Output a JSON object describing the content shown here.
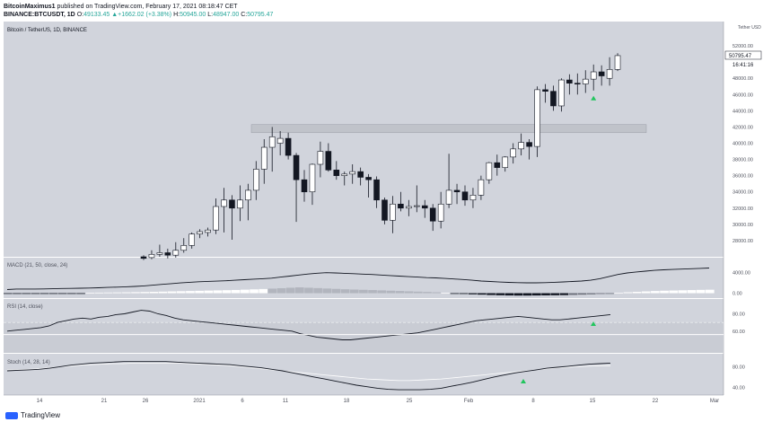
{
  "header": {
    "author": "BitcoinMaximus1",
    "published_text": "published on TradingView.com, February 17, 2021 08:18:47 CET",
    "symbol": "BINANCE:BTCUSDT, 1D",
    "open_label": "O:",
    "open_value": "49133.45",
    "change": "+1662.02 (+3.38%)",
    "high_label": "H:",
    "high_value": "50945.00",
    "low_label": "L:",
    "low_value": "48947.00",
    "close_label": "C:",
    "close_value": "50795.47"
  },
  "footer": {
    "logo_text": "TradingView"
  },
  "colors": {
    "background": "#d1d4dc",
    "up_fill": "#ffffff",
    "down_fill": "#131722",
    "line": "#131722",
    "signal": "#ffffff",
    "arrow": "#22c55e",
    "zone": "#bfc2c9"
  },
  "chart_data": [
    {
      "type": "candlestick",
      "title": "Bitcoin / TetherUS, 1D, BINANCE",
      "y_axis_label": "Tether USD",
      "ylim": [
        26000,
        55000
      ],
      "y_ticks": [
        "52000.00",
        "50000.00",
        "48000.00",
        "46000.00",
        "44000.00",
        "42000.00",
        "40000.00",
        "38000.00",
        "36000.00",
        "34000.00",
        "32000.00",
        "30000.00",
        "28000.00"
      ],
      "last_price_label": "50795.47",
      "countdown_label": "16:41:16",
      "candles": [
        {
          "o": 26000,
          "h": 26200,
          "l": 25600,
          "c": 25800
        },
        {
          "o": 25900,
          "h": 26800,
          "l": 25700,
          "c": 26300
        },
        {
          "o": 26300,
          "h": 27500,
          "l": 26000,
          "c": 26500
        },
        {
          "o": 26500,
          "h": 27000,
          "l": 25800,
          "c": 26200
        },
        {
          "o": 26200,
          "h": 27800,
          "l": 25900,
          "c": 26800
        },
        {
          "o": 26800,
          "h": 28300,
          "l": 26500,
          "c": 27400
        },
        {
          "o": 27400,
          "h": 29000,
          "l": 27000,
          "c": 28800
        },
        {
          "o": 28800,
          "h": 29400,
          "l": 28300,
          "c": 29100
        },
        {
          "o": 29000,
          "h": 29600,
          "l": 28500,
          "c": 29300
        },
        {
          "o": 29300,
          "h": 33200,
          "l": 28800,
          "c": 32200
        },
        {
          "o": 32200,
          "h": 34500,
          "l": 29000,
          "c": 33000
        },
        {
          "o": 33000,
          "h": 33600,
          "l": 28100,
          "c": 32000
        },
        {
          "o": 32000,
          "h": 34800,
          "l": 30400,
          "c": 33000
        },
        {
          "o": 33000,
          "h": 35000,
          "l": 30500,
          "c": 34200
        },
        {
          "o": 34200,
          "h": 37800,
          "l": 33000,
          "c": 36800
        },
        {
          "o": 36800,
          "h": 40500,
          "l": 35000,
          "c": 39500
        },
        {
          "o": 39500,
          "h": 42000,
          "l": 36500,
          "c": 40800
        },
        {
          "o": 40000,
          "h": 41500,
          "l": 38500,
          "c": 40600
        },
        {
          "o": 40600,
          "h": 41300,
          "l": 38000,
          "c": 38500
        },
        {
          "o": 38500,
          "h": 38800,
          "l": 30300,
          "c": 35500
        },
        {
          "o": 35500,
          "h": 36700,
          "l": 32800,
          "c": 34000
        },
        {
          "o": 34000,
          "h": 37500,
          "l": 32400,
          "c": 37400
        },
        {
          "o": 37400,
          "h": 40200,
          "l": 35800,
          "c": 39000
        },
        {
          "o": 39000,
          "h": 40000,
          "l": 36500,
          "c": 36700
        },
        {
          "o": 36700,
          "h": 37800,
          "l": 35500,
          "c": 36000
        },
        {
          "o": 36000,
          "h": 36500,
          "l": 34800,
          "c": 36200
        },
        {
          "o": 36200,
          "h": 37400,
          "l": 35000,
          "c": 36500
        },
        {
          "o": 36500,
          "h": 37000,
          "l": 34800,
          "c": 35800
        },
        {
          "o": 35800,
          "h": 36200,
          "l": 33300,
          "c": 35500
        },
        {
          "o": 35500,
          "h": 35900,
          "l": 32000,
          "c": 33000
        },
        {
          "o": 33000,
          "h": 33300,
          "l": 30000,
          "c": 30500
        },
        {
          "o": 30500,
          "h": 33500,
          "l": 28900,
          "c": 32500
        },
        {
          "o": 32500,
          "h": 34000,
          "l": 31600,
          "c": 32000
        },
        {
          "o": 32000,
          "h": 33000,
          "l": 31000,
          "c": 32200
        },
        {
          "o": 32200,
          "h": 34800,
          "l": 31500,
          "c": 32300
        },
        {
          "o": 32300,
          "h": 33000,
          "l": 30800,
          "c": 32000
        },
        {
          "o": 32000,
          "h": 32500,
          "l": 29200,
          "c": 30400
        },
        {
          "o": 30400,
          "h": 34000,
          "l": 29500,
          "c": 32500
        },
        {
          "o": 32500,
          "h": 38700,
          "l": 32000,
          "c": 34200
        },
        {
          "o": 34200,
          "h": 35000,
          "l": 32500,
          "c": 34000
        },
        {
          "o": 34000,
          "h": 34800,
          "l": 32300,
          "c": 33000
        },
        {
          "o": 33000,
          "h": 34500,
          "l": 32000,
          "c": 33600
        },
        {
          "o": 33600,
          "h": 36000,
          "l": 33000,
          "c": 35500
        },
        {
          "o": 35500,
          "h": 37700,
          "l": 35000,
          "c": 37600
        },
        {
          "o": 37600,
          "h": 38600,
          "l": 36000,
          "c": 37000
        },
        {
          "o": 37000,
          "h": 38400,
          "l": 36500,
          "c": 38300
        },
        {
          "o": 38300,
          "h": 40000,
          "l": 37500,
          "c": 39300
        },
        {
          "o": 39300,
          "h": 41200,
          "l": 38500,
          "c": 40100
        },
        {
          "o": 40100,
          "h": 40500,
          "l": 38000,
          "c": 39600
        },
        {
          "o": 39600,
          "h": 47000,
          "l": 38300,
          "c": 46600
        },
        {
          "o": 46600,
          "h": 47300,
          "l": 45000,
          "c": 46400
        },
        {
          "o": 46400,
          "h": 47100,
          "l": 44000,
          "c": 44600
        },
        {
          "o": 44600,
          "h": 48000,
          "l": 43900,
          "c": 47800
        },
        {
          "o": 47800,
          "h": 48500,
          "l": 46000,
          "c": 47400
        },
        {
          "o": 47400,
          "h": 48600,
          "l": 46000,
          "c": 47300
        },
        {
          "o": 47300,
          "h": 49000,
          "l": 46200,
          "c": 47900
        },
        {
          "o": 47900,
          "h": 49700,
          "l": 46500,
          "c": 48800
        },
        {
          "o": 48800,
          "h": 49600,
          "l": 47100,
          "c": 48300
        },
        {
          "o": 48000,
          "h": 50600,
          "l": 47100,
          "c": 49100
        },
        {
          "o": 49100,
          "h": 51100,
          "l": 48900,
          "c": 50800
        }
      ],
      "resistance_zone": {
        "from": 41300,
        "to": 42300
      },
      "signals": [
        {
          "index": 56,
          "direction": "up"
        }
      ]
    },
    {
      "type": "line+histogram",
      "title": "MACD (21, 50, close, 24)",
      "y_ticks": [
        "4000.00",
        "0.00"
      ],
      "ylim": [
        -600,
        6500
      ],
      "macd": [
        700,
        800,
        800,
        800,
        820,
        860,
        900,
        930,
        950,
        1000,
        1050,
        1110,
        1170,
        1230,
        1310,
        1410,
        1550,
        1700,
        1850,
        1980,
        2100,
        2200,
        2270,
        2330,
        2400,
        2500,
        2600,
        2700,
        2800,
        2900,
        3100,
        3300,
        3500,
        3700,
        3850,
        3950,
        3900,
        3830,
        3760,
        3680,
        3600,
        3500,
        3400,
        3300,
        3200,
        3100,
        3000,
        2950,
        2850,
        2750,
        2640,
        2500,
        2350,
        2250,
        2150,
        2080,
        2030,
        2000,
        2000,
        2040,
        2100,
        2170,
        2250,
        2350,
        2500,
        2800,
        3200,
        3600,
        3900,
        4100,
        4250,
        4400,
        4500,
        4580,
        4650,
        4720,
        4780,
        4850
      ],
      "histogram": [
        -100,
        -100,
        -110,
        -120,
        -130,
        -130,
        -130,
        -120,
        -100,
        100,
        110,
        130,
        150,
        170,
        200,
        230,
        260,
        300,
        340,
        380,
        420,
        460,
        500,
        540,
        580,
        620,
        680,
        740,
        800,
        880,
        960,
        1050,
        1120,
        1050,
        980,
        900,
        830,
        760,
        700,
        650,
        600,
        540,
        480,
        420,
        360,
        300,
        240,
        180,
        100,
        -80,
        -150,
        -220,
        -280,
        -350,
        -400,
        -440,
        -460,
        -460,
        -440,
        -420,
        -400,
        -370,
        -330,
        -280,
        -220,
        -150,
        -80,
        100,
        180,
        260,
        340,
        420,
        480,
        520,
        560,
        600,
        640,
        670
      ]
    },
    {
      "type": "line",
      "title": "RSI (14, close)",
      "y_ticks": [
        "80.00",
        "60.00"
      ],
      "ylim": [
        35,
        97
      ],
      "levels": [
        70,
        30
      ],
      "values": [
        60,
        61,
        62,
        63,
        64,
        66,
        70,
        72,
        74,
        75,
        74,
        76,
        77,
        79,
        80,
        82,
        84,
        83,
        80,
        78,
        75,
        73,
        72,
        71,
        70,
        69,
        68,
        67,
        66,
        65,
        64,
        63,
        62,
        61,
        60,
        57,
        55,
        53,
        52,
        51,
        50,
        50,
        51,
        52,
        53,
        54,
        55,
        56,
        57,
        58,
        60,
        62,
        64,
        66,
        68,
        70,
        72,
        73,
        74,
        75,
        76,
        77,
        76,
        75,
        74,
        73,
        73,
        74,
        75,
        76,
        77,
        78,
        79
      ]
    },
    {
      "type": "line",
      "title": "Stoch (14, 28, 14)",
      "y_ticks": [
        "80.00",
        "40.00"
      ],
      "ylim": [
        30,
        100
      ],
      "k": [
        72,
        73,
        74,
        75,
        77,
        80,
        83,
        85,
        87,
        88,
        89,
        90,
        90,
        90,
        90,
        90,
        89,
        88,
        87,
        86,
        85,
        84,
        82,
        80,
        78,
        75,
        72,
        68,
        64,
        60,
        56,
        52,
        48,
        44,
        41,
        38,
        36,
        35,
        35,
        35,
        36,
        38,
        42,
        46,
        50,
        55,
        60,
        64,
        68,
        71,
        74,
        77,
        79,
        81,
        83,
        85,
        86,
        87
      ],
      "d": [
        74,
        74,
        75,
        76,
        78,
        80,
        81,
        83,
        84,
        85,
        86,
        86,
        87,
        87,
        87,
        87,
        87,
        86,
        85,
        84,
        83,
        82,
        80,
        78,
        76,
        74,
        72,
        70,
        68,
        66,
        64,
        62,
        60,
        58,
        56,
        55,
        54,
        53,
        53,
        54,
        55,
        56,
        58,
        60,
        62,
        64,
        66,
        68,
        70,
        72,
        74,
        76,
        78,
        79,
        80,
        81,
        82,
        82
      ]
    }
  ],
  "x_axis": {
    "labels": [
      "14",
      "21",
      "26",
      "2021",
      "6",
      "11",
      "18",
      "25",
      "Feb",
      "8",
      "15",
      "22",
      "Mar"
    ]
  }
}
